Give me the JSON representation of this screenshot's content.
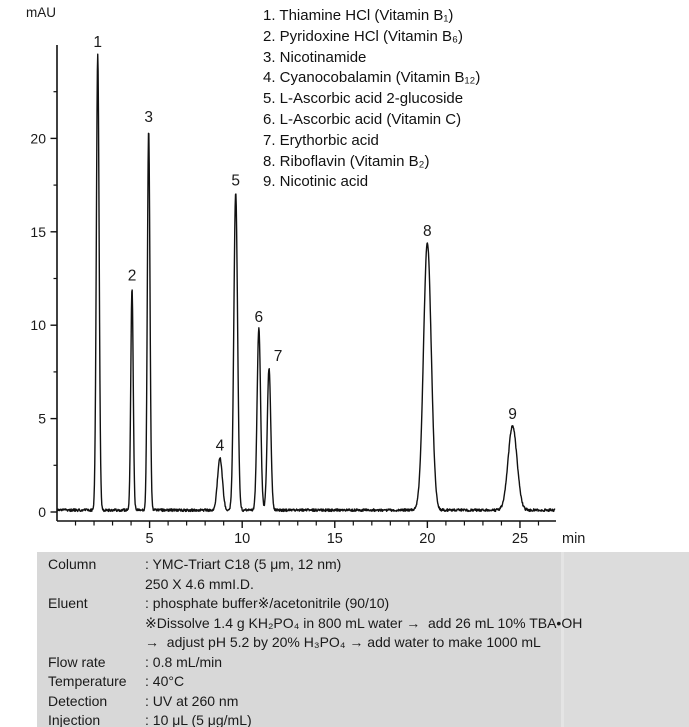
{
  "page": {
    "background_color": "#ffffff",
    "text_color": "#1a1a1a",
    "trace_color": "#111111",
    "panel_color": "#d8d8d8"
  },
  "legend": {
    "items": [
      "1. Thiamine HCl (Vitamin B₁)",
      "2. Pyridoxine HCl (Vitamin B₆)",
      "3. Nicotinamide",
      "4. Cyanocobalamin (Vitamin B₁₂)",
      "5. L-Ascorbic acid 2-glucoside",
      "6. L-Ascorbic acid (Vitamin C)",
      "7. Erythorbic acid",
      "8. Riboflavin (Vitamin B₂)",
      "9. Nicotinic acid"
    ]
  },
  "chart_data": {
    "type": "line",
    "title": "",
    "xlabel": "min",
    "ylabel": "mAU",
    "xlim": [
      0,
      27
    ],
    "ylim": [
      -1,
      25
    ],
    "x_major_ticks": [
      5,
      10,
      15,
      20,
      25
    ],
    "x_minor_step": 1,
    "y_major_ticks": [
      0,
      5,
      10,
      15,
      20
    ],
    "y_minor_step": 2.5,
    "grid": false,
    "legend_position": "top-right-outside",
    "baseline_mAU": 0.1,
    "noise_amplitude_mAU": 0.07,
    "peaks": [
      {
        "label": "1",
        "compound": "Thiamine HCl (Vitamin B₁)",
        "rt_min": 2.2,
        "height_mAU": 24.4,
        "sigma_min": 0.075
      },
      {
        "label": "2",
        "compound": "Pyridoxine HCl (Vitamin B₆)",
        "rt_min": 4.05,
        "height_mAU": 11.9,
        "sigma_min": 0.065
      },
      {
        "label": "3",
        "compound": "Nicotinamide",
        "rt_min": 4.95,
        "height_mAU": 20.4,
        "sigma_min": 0.07
      },
      {
        "label": "4",
        "compound": "Cyanocobalamin (Vitamin B₁₂)",
        "rt_min": 8.8,
        "height_mAU": 2.8,
        "sigma_min": 0.13
      },
      {
        "label": "5",
        "compound": "L-Ascorbic acid 2-glucoside",
        "rt_min": 9.65,
        "height_mAU": 17.0,
        "sigma_min": 0.1
      },
      {
        "label": "6",
        "compound": "L-Ascorbic acid (Vitamin C)",
        "rt_min": 10.9,
        "height_mAU": 9.7,
        "sigma_min": 0.095
      },
      {
        "label": "7",
        "compound": "Erythorbic acid",
        "rt_min": 11.45,
        "height_mAU": 7.6,
        "sigma_min": 0.095,
        "label_dx": 9
      },
      {
        "label": "8",
        "compound": "Riboflavin (Vitamin B₂)",
        "rt_min": 20.0,
        "height_mAU": 14.3,
        "sigma_min": 0.21
      },
      {
        "label": "9",
        "compound": "Nicotinic acid",
        "rt_min": 24.6,
        "height_mAU": 4.5,
        "sigma_min": 0.24
      }
    ]
  },
  "conditions": {
    "rows": [
      {
        "label": "Column",
        "lines": [
          ": YMC-Triart C18 (5 μm, 12 nm)",
          "250 X 4.6 mmI.D."
        ]
      },
      {
        "label": "Eluent",
        "lines": [
          ": phosphate buffer※/acetonitrile (90/10)",
          "※Dissolve 1.4 g KH₂PO₄ in 800 mL water →  add 26 mL 10% TBA•OH",
          "→  adjust pH 5.2 by 20% H₃PO₄ → add water to make 1000 mL"
        ]
      },
      {
        "label": "Flow rate",
        "lines": [
          ": 0.8 mL/min"
        ]
      },
      {
        "label": "Temperature",
        "lines": [
          ": 40°C"
        ]
      },
      {
        "label": "Detection",
        "lines": [
          ": UV at 260 nm"
        ]
      },
      {
        "label": "Injection",
        "lines": [
          ": 10 μL (5 μg/mL)"
        ]
      }
    ]
  }
}
